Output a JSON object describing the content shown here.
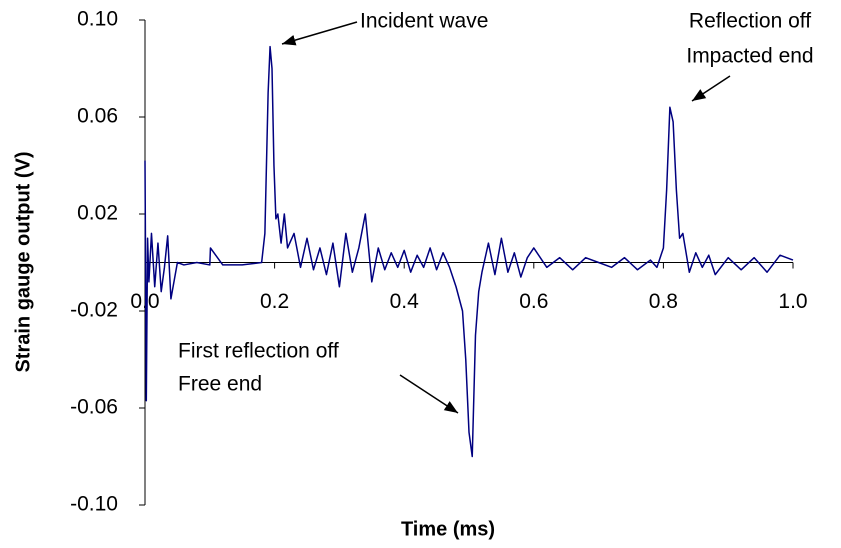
{
  "chart_data": {
    "type": "line",
    "x_label": "Time (ms)",
    "y_label": "Strain gauge output (V)",
    "xlim": [
      0,
      1.0
    ],
    "ylim": [
      -0.1,
      0.1
    ],
    "xticks": [
      {
        "value": 0,
        "label": "0.0"
      },
      0.2,
      0.4,
      0.6,
      0.8,
      {
        "value": 1,
        "label": "1.0"
      }
    ],
    "yticks": [
      {
        "value": 0.1,
        "label": "0.10"
      },
      0.06,
      0.02,
      -0.02,
      -0.06,
      {
        "value": -0.1,
        "label": "-0.10"
      }
    ],
    "grid": false,
    "x": [
      0,
      0.002,
      0.004,
      0.006,
      0.01,
      0.015,
      0.02,
      0.025,
      0.03,
      0.035,
      0.04,
      0.05,
      0.06,
      0.08,
      0.1,
      0.101,
      0.12,
      0.15,
      0.18,
      0.185,
      0.19,
      0.193,
      0.196,
      0.199,
      0.202,
      0.205,
      0.21,
      0.215,
      0.22,
      0.23,
      0.24,
      0.25,
      0.26,
      0.27,
      0.28,
      0.29,
      0.3,
      0.31,
      0.32,
      0.33,
      0.34,
      0.35,
      0.36,
      0.37,
      0.38,
      0.39,
      0.4,
      0.41,
      0.42,
      0.43,
      0.44,
      0.45,
      0.46,
      0.47,
      0.48,
      0.49,
      0.495,
      0.5,
      0.505,
      0.51,
      0.515,
      0.52,
      0.53,
      0.54,
      0.55,
      0.56,
      0.57,
      0.58,
      0.59,
      0.6,
      0.62,
      0.64,
      0.66,
      0.68,
      0.7,
      0.72,
      0.74,
      0.76,
      0.78,
      0.79,
      0.8,
      0.805,
      0.81,
      0.815,
      0.82,
      0.825,
      0.83,
      0.84,
      0.85,
      0.86,
      0.87,
      0.88,
      0.9,
      0.92,
      0.94,
      0.96,
      0.98,
      1.0
    ],
    "series": [
      {
        "color": "#000080",
        "values": [
          0.042,
          -0.057,
          0.01,
          -0.008,
          0.012,
          -0.01,
          0.008,
          -0.012,
          -0.002,
          0.011,
          -0.015,
          0,
          -0.001,
          0,
          -0.001,
          0.006,
          -0.001,
          -0.001,
          0,
          0.012,
          0.07,
          0.089,
          0.08,
          0.04,
          0.018,
          0.02,
          0.008,
          0.02,
          0.006,
          0.012,
          -0.002,
          0.01,
          -0.003,
          0.006,
          -0.005,
          0.008,
          -0.01,
          0.012,
          -0.004,
          0.006,
          0.02,
          -0.008,
          0.006,
          -0.003,
          0.004,
          -0.002,
          0.005,
          -0.004,
          0.003,
          -0.002,
          0.006,
          -0.003,
          0.004,
          -0.002,
          -0.01,
          -0.02,
          -0.04,
          -0.07,
          -0.08,
          -0.03,
          -0.012,
          -0.004,
          0.008,
          -0.005,
          0.01,
          -0.004,
          0.004,
          -0.006,
          0.002,
          0.006,
          -0.002,
          0.002,
          -0.003,
          0.002,
          0,
          -0.002,
          0.002,
          -0.003,
          0.001,
          -0.002,
          0.006,
          0.03,
          0.064,
          0.058,
          0.03,
          0.01,
          0.012,
          -0.004,
          0.004,
          -0.002,
          0.003,
          -0.005,
          0.002,
          -0.003,
          0.002,
          -0.004,
          0.003,
          0.001
        ]
      }
    ],
    "annotations": [
      {
        "lines": [
          "Incident wave"
        ]
      },
      {
        "lines": [
          "Reflection off",
          "Impacted end"
        ]
      },
      {
        "lines": [
          "First reflection off",
          "Free end"
        ]
      }
    ]
  }
}
